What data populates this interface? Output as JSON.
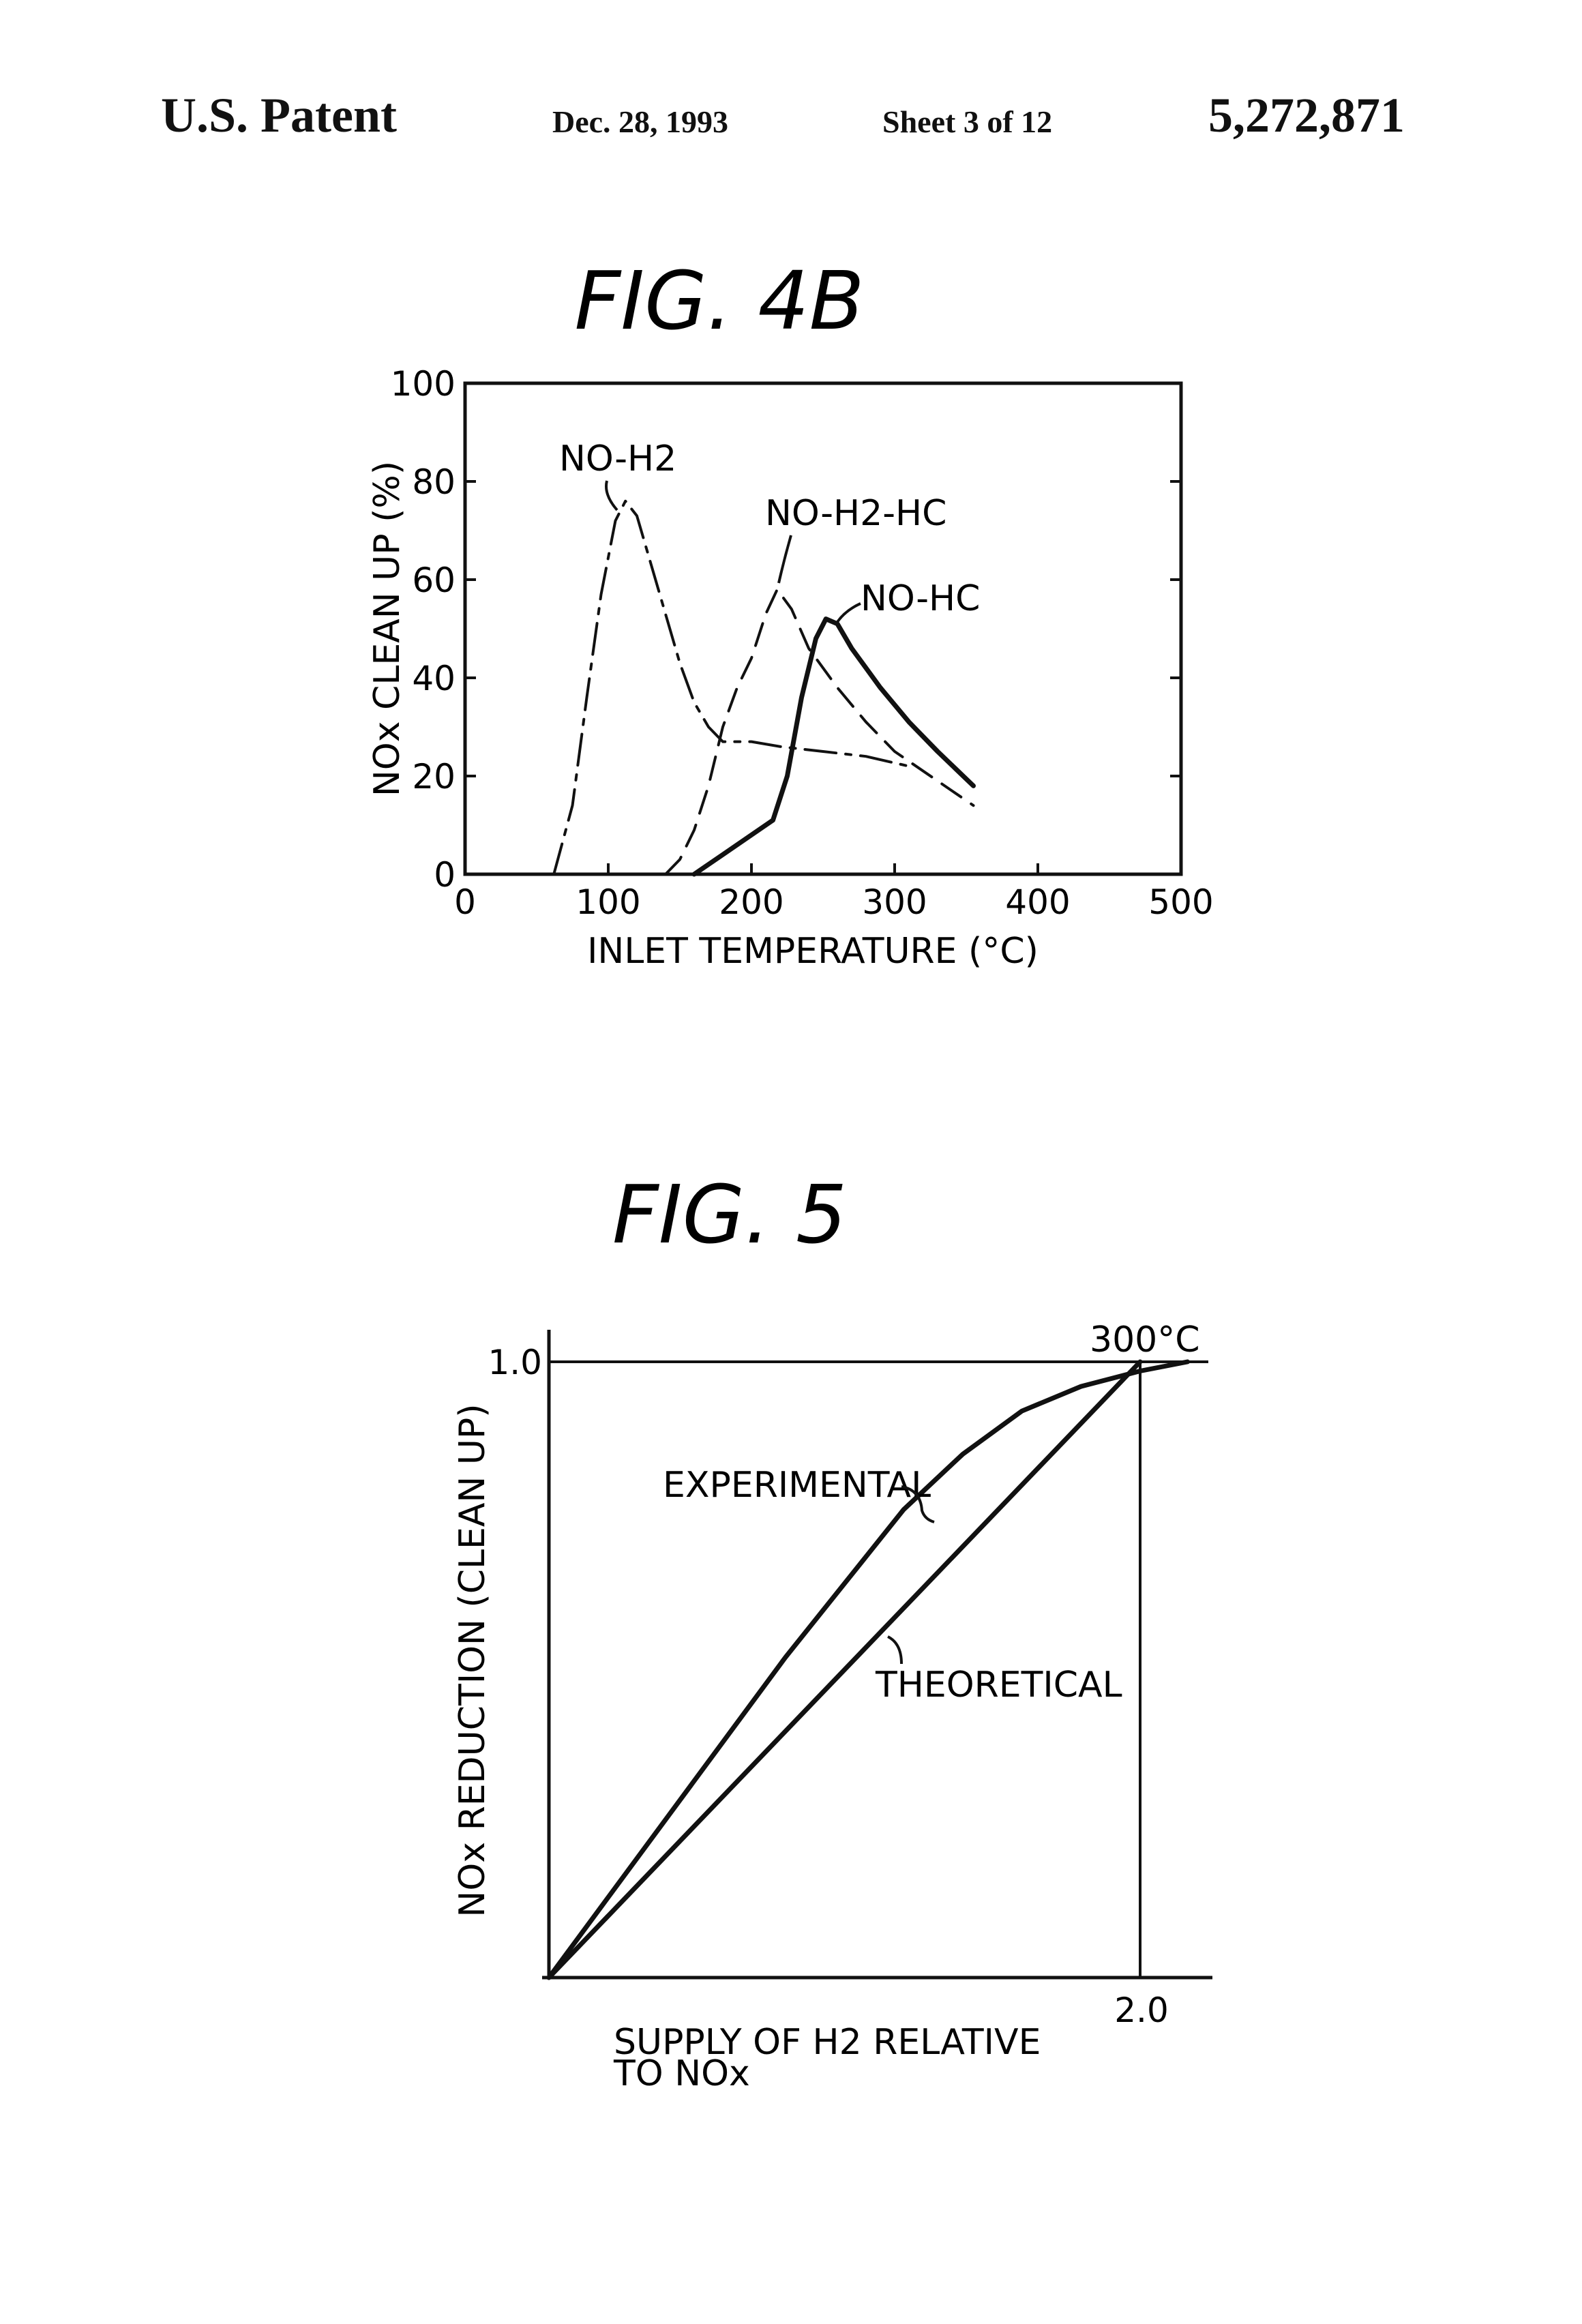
{
  "header": {
    "left": "U.S. Patent",
    "date": "Dec. 28, 1993",
    "sheet": "Sheet 3 of 12",
    "patent_number": "5,272,871"
  },
  "chart_data": [
    {
      "type": "line",
      "title": "FIG. 4B",
      "xlabel": "INLET TEMPERATURE (°C)",
      "ylabel": "NOx CLEAN UP (%)",
      "xlim": [
        0,
        500
      ],
      "ylim": [
        0,
        100
      ],
      "xticks": [
        "0",
        "100",
        "200",
        "300",
        "400",
        "500"
      ],
      "yticks": [
        "0",
        "20",
        "40",
        "60",
        "80",
        "100"
      ],
      "grid": false,
      "legend": "none",
      "series": [
        {
          "name": "NO-H2",
          "style": "dash-dot",
          "x": [
            62,
            75,
            85,
            95,
            105,
            112,
            120,
            130,
            140,
            150,
            160,
            170,
            180,
            200,
            220,
            250,
            280,
            310
          ],
          "values": [
            0,
            14,
            36,
            57,
            72,
            76,
            73,
            63,
            53,
            43,
            35,
            30,
            27,
            27,
            26,
            25,
            24,
            22
          ]
        },
        {
          "name": "NO-H2-HC",
          "style": "dashed",
          "x": [
            140,
            150,
            160,
            170,
            180,
            190,
            200,
            210,
            218,
            228,
            240,
            260,
            280,
            300,
            320,
            340,
            355
          ],
          "values": [
            0,
            3,
            9,
            18,
            30,
            38,
            44,
            53,
            58,
            54,
            46,
            38,
            31,
            25,
            21,
            17,
            14
          ]
        },
        {
          "name": "NO-HC",
          "style": "solid",
          "x": [
            160,
            180,
            200,
            215,
            225,
            235,
            245,
            252,
            260,
            270,
            290,
            310,
            330,
            355
          ],
          "values": [
            0,
            4,
            8,
            11,
            20,
            36,
            48,
            52,
            51,
            46,
            38,
            31,
            25,
            18
          ]
        }
      ]
    },
    {
      "type": "line",
      "title": "FIG. 5",
      "xlabel": "SUPPLY OF H2 RELATIVE TO NOx",
      "ylabel": "NOx REDUCTION (CLEAN UP)",
      "xlim": [
        0,
        2.2
      ],
      "ylim": [
        0,
        1.05
      ],
      "xticks": [
        "2.0"
      ],
      "yticks": [
        "1.0"
      ],
      "grid": false,
      "legend": "none",
      "annotation": "300°C",
      "series": [
        {
          "name": "EXPERIMENTAL",
          "style": "solid",
          "x": [
            0,
            0.2,
            0.4,
            0.6,
            0.8,
            1.0,
            1.2,
            1.4,
            1.6,
            1.8,
            2.0,
            2.16
          ],
          "values": [
            0,
            0.13,
            0.26,
            0.39,
            0.52,
            0.64,
            0.76,
            0.85,
            0.92,
            0.96,
            0.985,
            1.0
          ]
        },
        {
          "name": "THEORETICAL",
          "style": "solid",
          "x": [
            0,
            2.0
          ],
          "values": [
            0,
            1.0
          ]
        }
      ]
    }
  ]
}
